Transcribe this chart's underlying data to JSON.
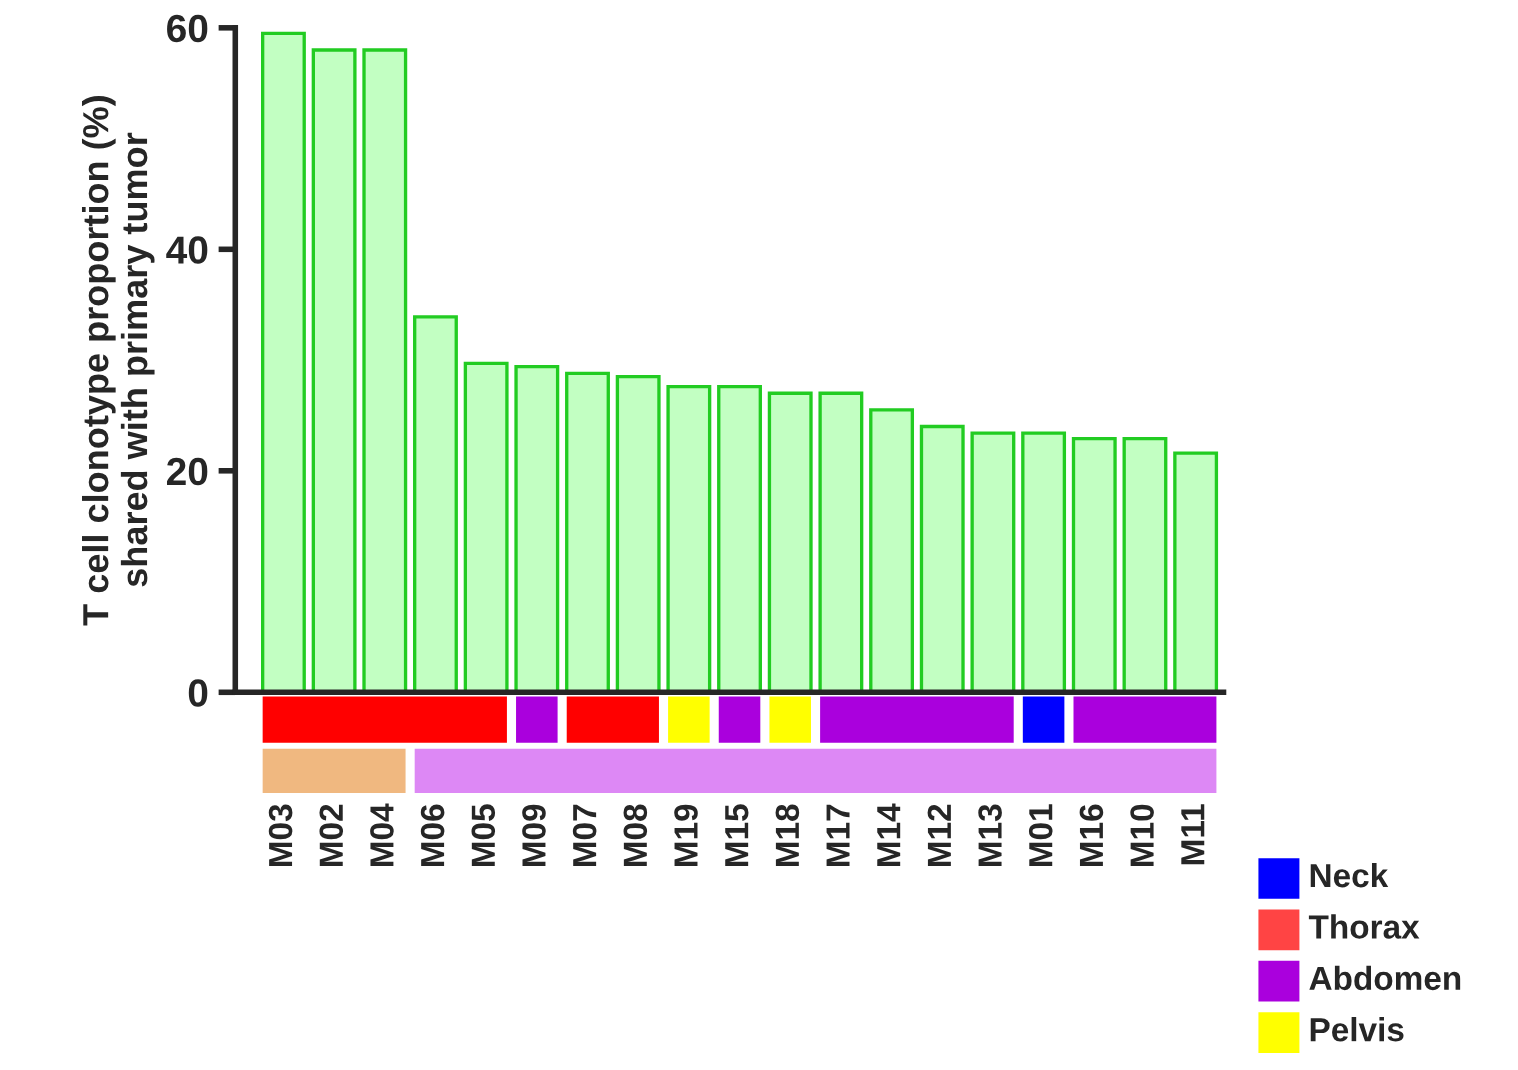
{
  "chart_data": {
    "type": "bar",
    "ylabel": "T cell clonotype proportion (%)\nshared with primary tumor",
    "categories": [
      "M03",
      "M02",
      "M04",
      "M06",
      "M05",
      "M09",
      "M07",
      "M08",
      "M19",
      "M15",
      "M18",
      "M17",
      "M14",
      "M12",
      "M13",
      "M01",
      "M16",
      "M10",
      "M11"
    ],
    "values": [
      59.5,
      58.0,
      58.0,
      33.9,
      29.7,
      29.4,
      28.8,
      28.5,
      27.6,
      27.6,
      27.0,
      27.0,
      25.5,
      24.0,
      23.4,
      23.4,
      22.9,
      22.9,
      21.6
    ],
    "color": "#c2ffc2",
    "ylim": [
      0,
      60
    ],
    "yticks": [
      0,
      20,
      40,
      60
    ],
    "grid": false,
    "annotations": [
      "Neck",
      "Thorax",
      "Abdomen",
      "Pelvis"
    ]
  }
}
